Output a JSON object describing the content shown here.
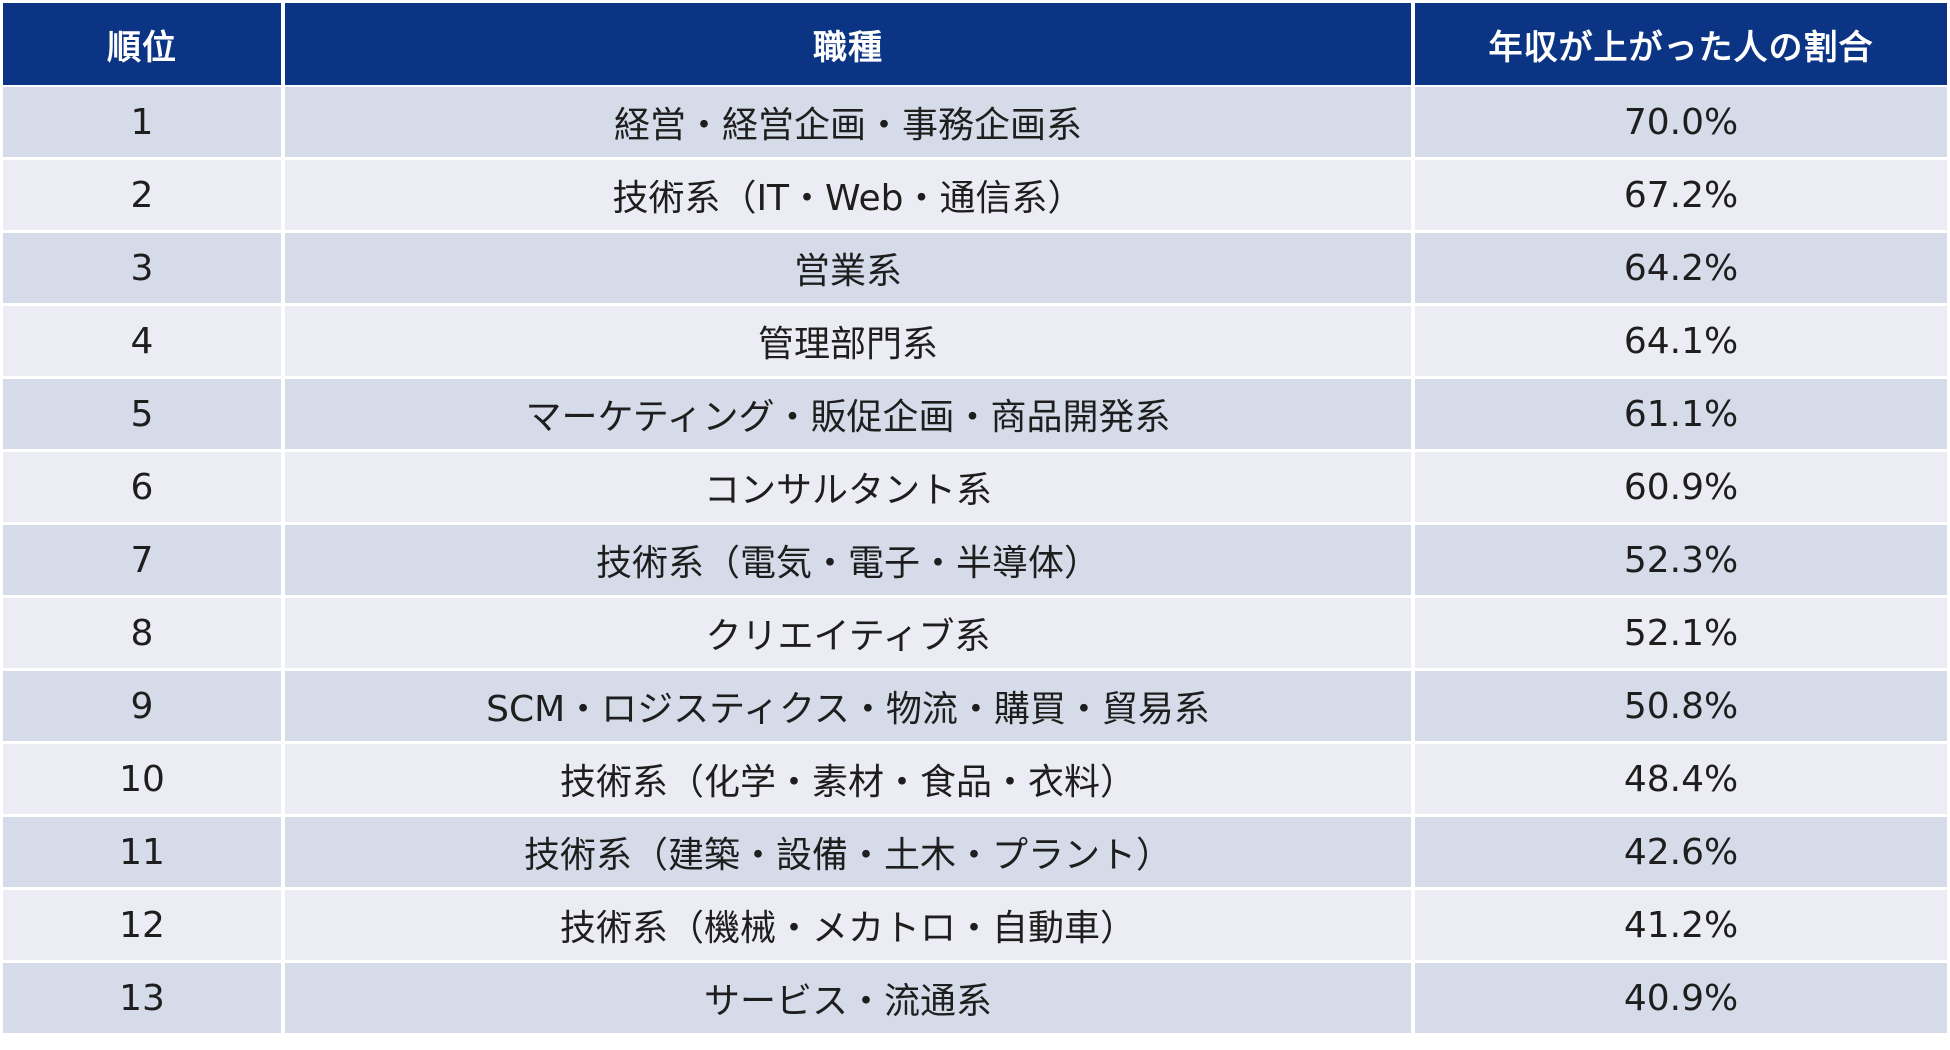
{
  "table": {
    "headers": {
      "rank": "順位",
      "job": "職種",
      "rate": "年収が上がった人の割合"
    },
    "rows": [
      {
        "rank": "1",
        "job": "経営・経営企画・事務企画系",
        "rate": "70.0%"
      },
      {
        "rank": "2",
        "job": "技術系（IT・Web・通信系）",
        "rate": "67.2%"
      },
      {
        "rank": "3",
        "job": "営業系",
        "rate": "64.2%"
      },
      {
        "rank": "4",
        "job": "管理部門系",
        "rate": "64.1%"
      },
      {
        "rank": "5",
        "job": "マーケティング・販促企画・商品開発系",
        "rate": "61.1%"
      },
      {
        "rank": "6",
        "job": "コンサルタント系",
        "rate": "60.9%"
      },
      {
        "rank": "7",
        "job": "技術系（電気・電子・半導体）",
        "rate": "52.3%"
      },
      {
        "rank": "8",
        "job": "クリエイティブ系",
        "rate": "52.1%"
      },
      {
        "rank": "9",
        "job": "SCM・ロジスティクス・物流・購買・貿易系",
        "rate": "50.8%"
      },
      {
        "rank": "10",
        "job": "技術系（化学・素材・食品・衣料）",
        "rate": "48.4%"
      },
      {
        "rank": "11",
        "job": "技術系（建築・設備・土木・プラント）",
        "rate": "42.6%"
      },
      {
        "rank": "12",
        "job": "技術系（機械・メカトロ・自動車）",
        "rate": "41.2%"
      },
      {
        "rank": "13",
        "job": "サービス・流通系",
        "rate": "40.9%"
      }
    ]
  },
  "colors": {
    "header_bg": "#0b3484",
    "row_odd_bg": "#d5dbe8",
    "row_even_bg": "#ecedf4",
    "text": "#1e1e1e"
  }
}
